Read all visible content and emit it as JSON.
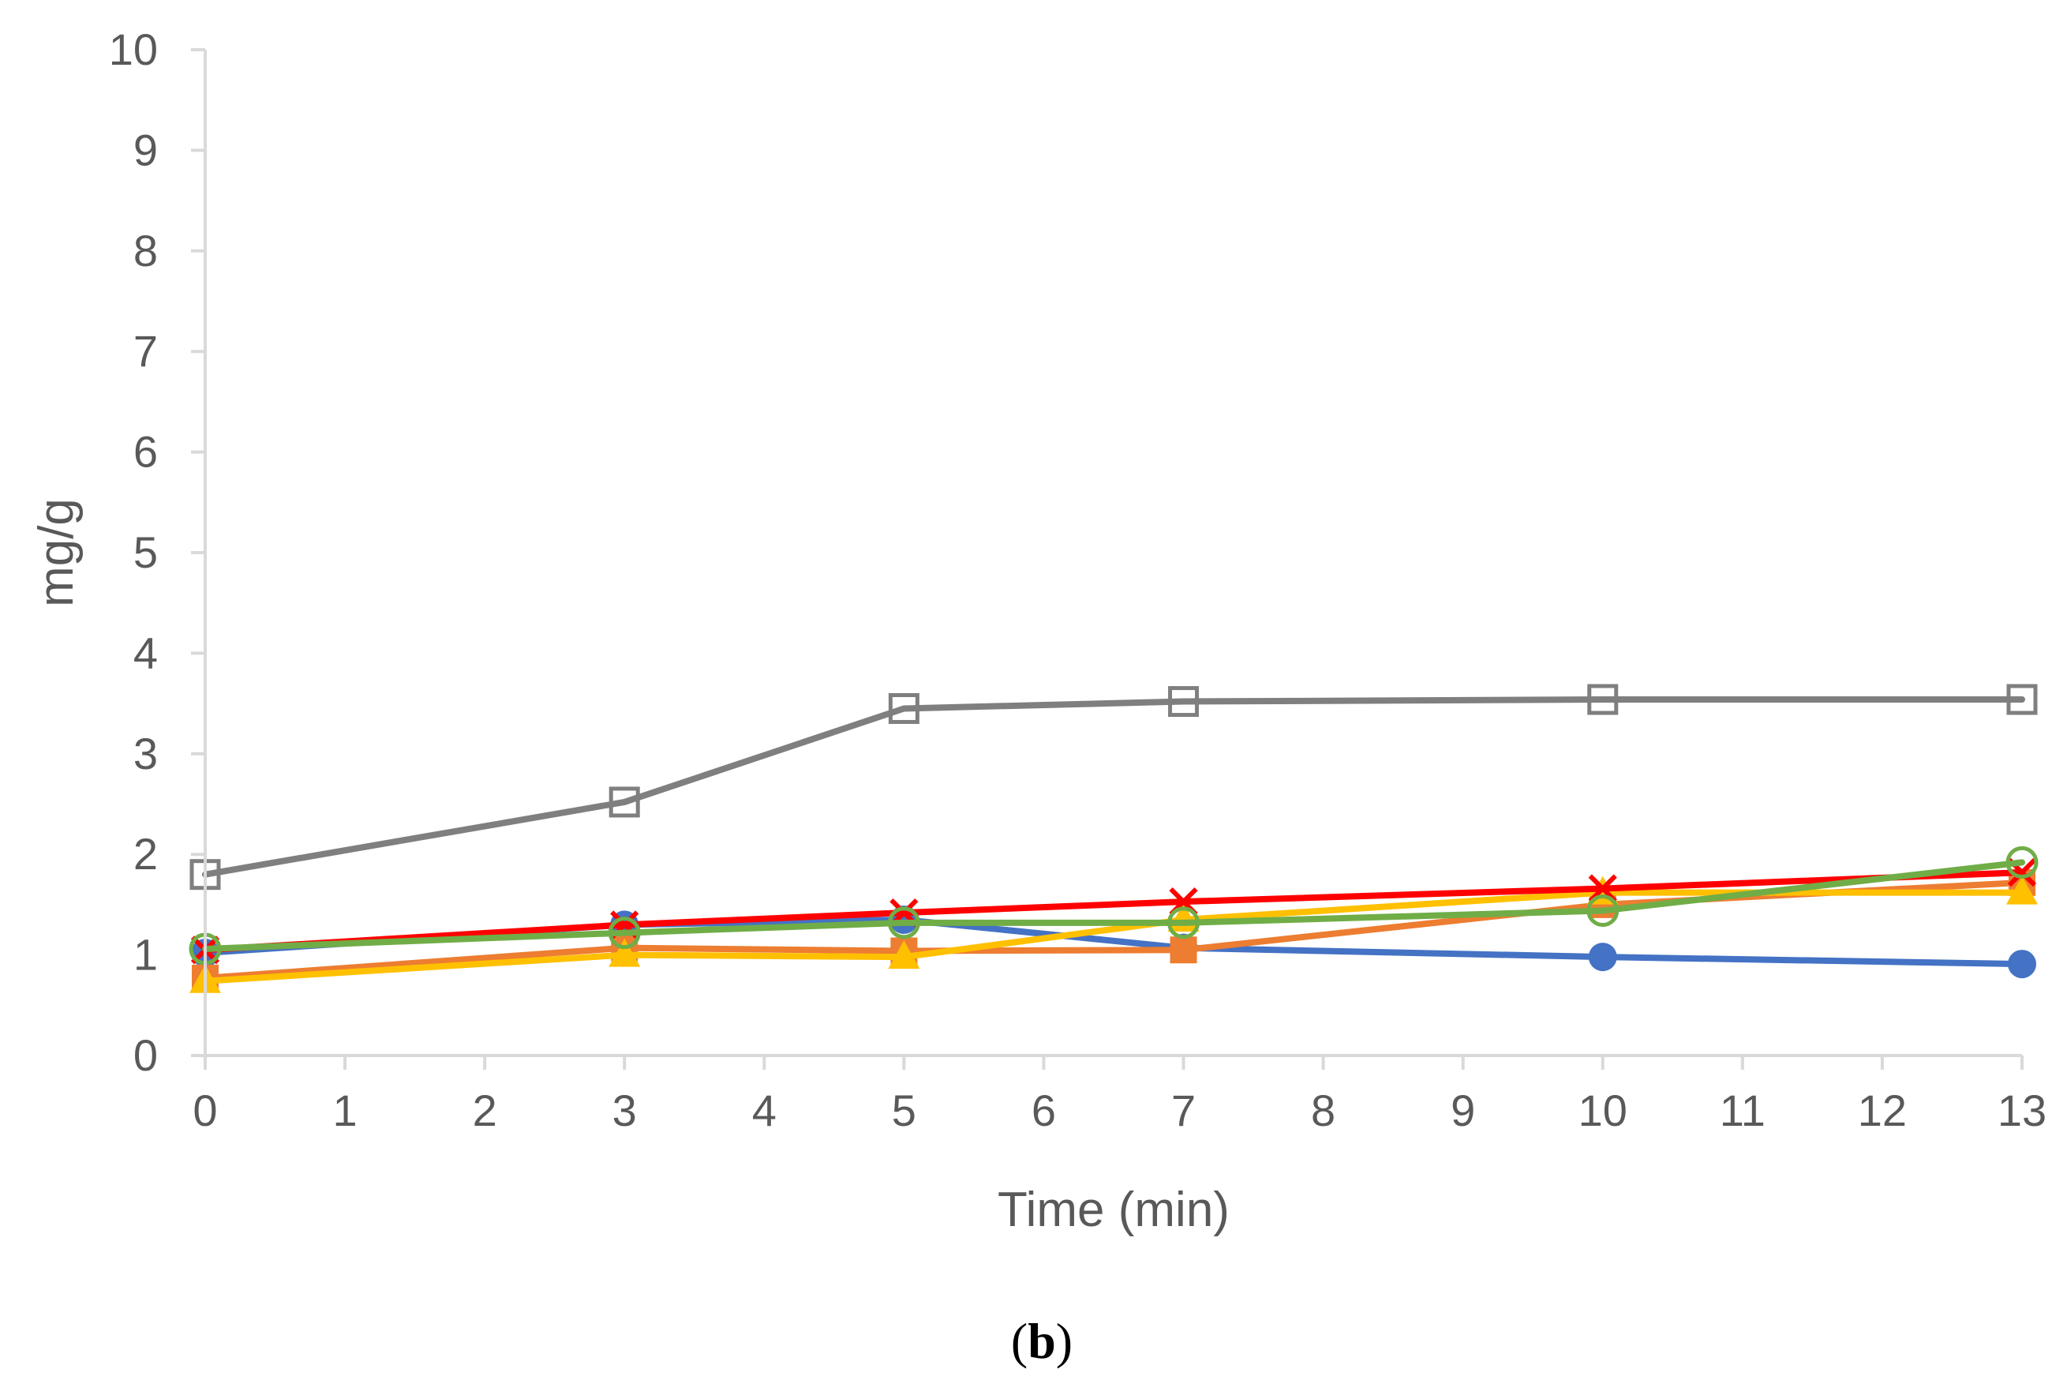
{
  "chart_data": {
    "type": "line",
    "title": "",
    "xlabel": "Time (min)",
    "ylabel": "mg/g",
    "panel_label": {
      "open": "(",
      "letter": "b",
      "close": ")"
    },
    "xlim": [
      0,
      13
    ],
    "ylim": [
      0,
      10
    ],
    "x_ticks": [
      0,
      1,
      2,
      3,
      4,
      5,
      6,
      7,
      8,
      9,
      10,
      11,
      12,
      13
    ],
    "y_ticks": [
      0,
      1,
      2,
      3,
      4,
      5,
      6,
      7,
      8,
      9,
      10
    ],
    "grid": false,
    "legend": "none",
    "x": [
      0,
      3,
      5,
      7,
      10,
      13
    ],
    "series": [
      {
        "name": "blue",
        "color": "#4472C4",
        "marker": "circle-filled",
        "values": [
          1.02,
          1.3,
          1.35,
          1.07,
          0.98,
          0.91
        ]
      },
      {
        "name": "orange",
        "color": "#ED7D31",
        "marker": "square-filled",
        "values": [
          0.77,
          1.07,
          1.04,
          1.05,
          1.5,
          1.72
        ]
      },
      {
        "name": "gray",
        "color": "#7F7F7F",
        "marker": "square-open",
        "values": [
          1.8,
          2.52,
          3.45,
          3.52,
          3.54,
          3.54
        ]
      },
      {
        "name": "yellow",
        "color": "#FFC000",
        "marker": "triangle-filled",
        "values": [
          0.74,
          1.0,
          0.98,
          1.35,
          1.62,
          1.62
        ]
      },
      {
        "name": "red",
        "color": "#FF0000",
        "marker": "x",
        "values": [
          1.05,
          1.3,
          1.42,
          1.53,
          1.66,
          1.82
        ]
      },
      {
        "name": "green",
        "color": "#70AD47",
        "marker": "circle-open",
        "values": [
          1.06,
          1.22,
          1.32,
          1.32,
          1.44,
          1.92
        ]
      }
    ]
  }
}
